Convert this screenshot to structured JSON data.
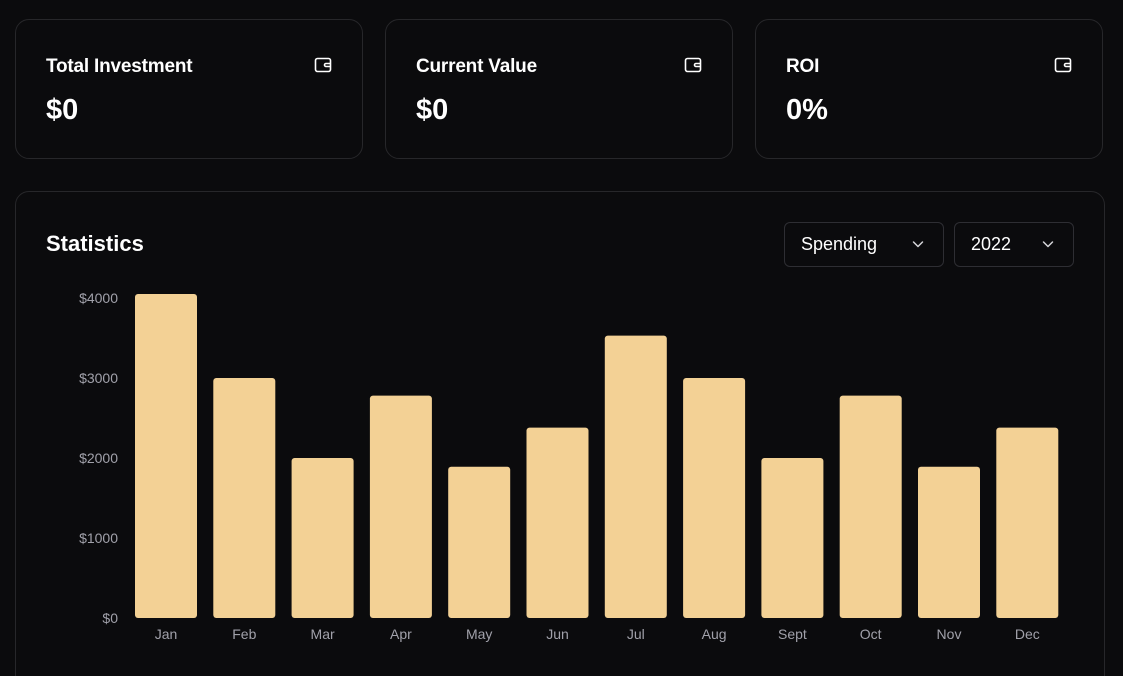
{
  "cards": [
    {
      "label": "Total Investment",
      "value": "$0",
      "icon": "wallet-icon"
    },
    {
      "label": "Current Value",
      "value": "$0",
      "icon": "wallet-icon"
    },
    {
      "label": "ROI",
      "value": "0%",
      "icon": "wallet-icon"
    }
  ],
  "statistics": {
    "title": "Statistics",
    "type_select": "Spending",
    "year_select": "2022"
  },
  "colors": {
    "bar": "#f3d195",
    "background": "#0b0b0d",
    "border": "#27272a",
    "axis_text": "#a1a1aa"
  },
  "chart_data": {
    "type": "bar",
    "categories": [
      "Jan",
      "Feb",
      "Mar",
      "Apr",
      "May",
      "Jun",
      "Jul",
      "Aug",
      "Sept",
      "Oct",
      "Nov",
      "Dec"
    ],
    "values": [
      4050,
      3000,
      2000,
      2780,
      1890,
      2380,
      3530,
      3000,
      2000,
      2780,
      1890,
      2380
    ],
    "ytick_labels": [
      "$0",
      "$1000",
      "$2000",
      "$3000",
      "$4000"
    ],
    "yticks": [
      0,
      1000,
      2000,
      3000,
      4000
    ],
    "ylim": [
      0,
      4000
    ],
    "grid": false,
    "legend": false
  }
}
